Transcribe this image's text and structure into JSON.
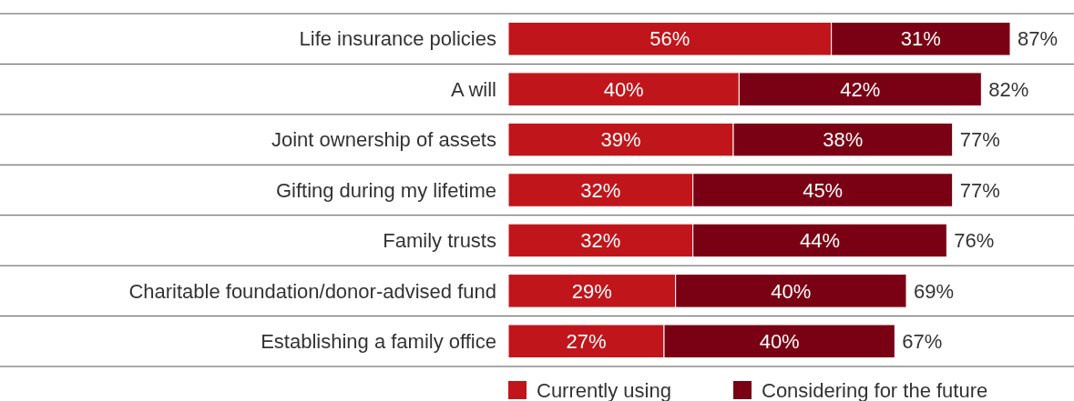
{
  "chart_data": {
    "type": "bar",
    "orientation": "horizontal",
    "stacked": true,
    "categories": [
      "Life insurance policies",
      "A will",
      "Joint ownership of assets",
      "Gifting during my lifetime",
      "Family trusts",
      "Charitable foundation/donor-advised fund",
      "Establishing a family office"
    ],
    "series": [
      {
        "name": "Currently using",
        "color": "#c0161b",
        "values": [
          56,
          40,
          39,
          32,
          32,
          29,
          27
        ],
        "value_labels": [
          "56%",
          "40%",
          "39%",
          "32%",
          "32%",
          "29%",
          "27%"
        ]
      },
      {
        "name": "Considering for the future",
        "color": "#7a0014",
        "values": [
          31,
          42,
          38,
          45,
          44,
          40,
          40
        ],
        "value_labels": [
          "31%",
          "42%",
          "38%",
          "45%",
          "44%",
          "40%",
          "40%"
        ]
      }
    ],
    "totals": [
      "87%",
      "82%",
      "77%",
      "77%",
      "76%",
      "69%",
      "67%"
    ],
    "legend": "bottom"
  }
}
